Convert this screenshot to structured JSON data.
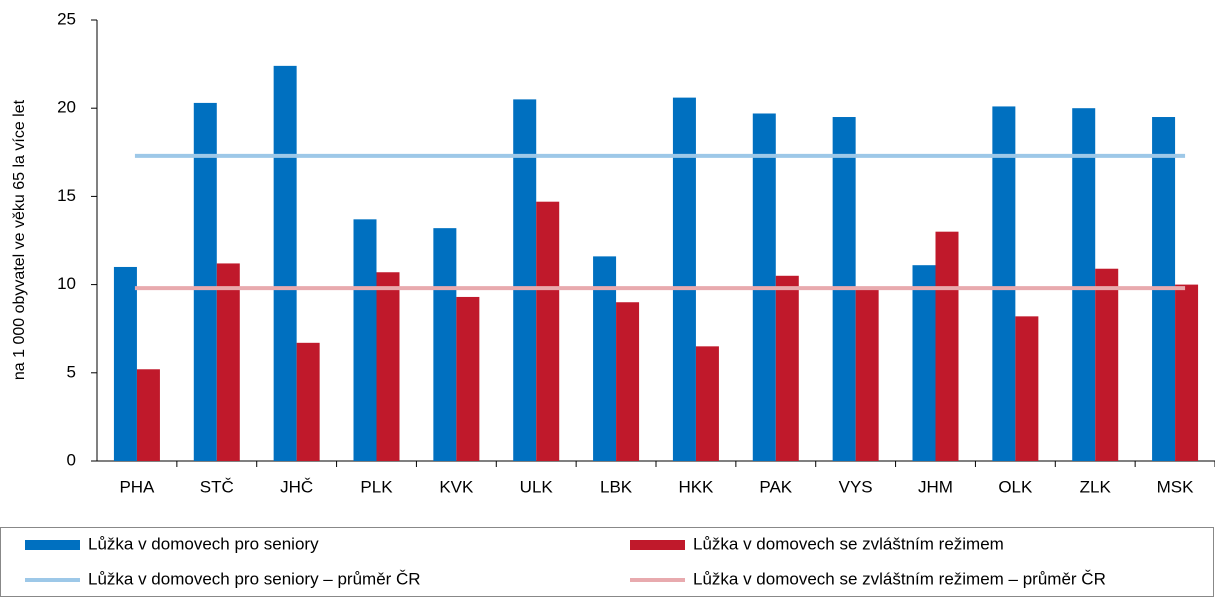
{
  "chart_data": {
    "type": "bar",
    "y_label": "na 1 000 obyvatel ve věku 65 la více let",
    "categories": [
      "PHA",
      "STČ",
      "JHČ",
      "PLK",
      "KVK",
      "ULK",
      "LBK",
      "HKK",
      "PAK",
      "VYS",
      "JHM",
      "OLK",
      "ZLK",
      "MSK"
    ],
    "series": [
      {
        "name": "Lůžka v domovech pro seniory",
        "color": "#0070c0",
        "kind": "bar",
        "values": [
          11.0,
          20.3,
          22.4,
          13.7,
          13.2,
          20.5,
          11.6,
          20.6,
          19.7,
          19.5,
          11.1,
          20.1,
          20.0,
          19.5
        ]
      },
      {
        "name": "Lůžka v domovech se zvláštním režimem",
        "color": "#c0192b",
        "kind": "bar",
        "values": [
          5.2,
          11.2,
          6.7,
          10.7,
          9.3,
          14.7,
          9.0,
          6.5,
          10.5,
          9.8,
          13.0,
          8.2,
          10.9,
          10.0
        ]
      },
      {
        "name": "Lůžka v domovech pro seniory – průměr ČR",
        "color": "#9dc8e8",
        "kind": "average",
        "value": 17.3
      },
      {
        "name": "Lůžka v domovech se zvláštním režimem – průměr ČR",
        "color": "#e8aaae",
        "kind": "average",
        "value": 9.8
      }
    ],
    "ylim": [
      0,
      25
    ],
    "yticks": [
      0,
      5,
      10,
      15,
      20,
      25
    ],
    "grid": false
  }
}
